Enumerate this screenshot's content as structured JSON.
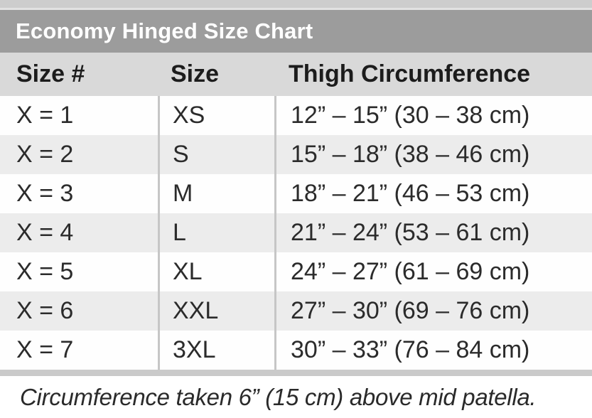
{
  "title": "Economy Hinged Size Chart",
  "table": {
    "columns": {
      "size_num": "Size #",
      "size": "Size",
      "thigh": "Thigh Circumference"
    },
    "rows": [
      {
        "size_num": "X = 1",
        "size": "XS",
        "thigh": "12” – 15” (30 – 38 cm)"
      },
      {
        "size_num": "X = 2",
        "size": "S",
        "thigh": "15” – 18” (38 – 46 cm)"
      },
      {
        "size_num": "X = 3",
        "size": "M",
        "thigh": "18” – 21” (46 – 53 cm)"
      },
      {
        "size_num": "X = 4",
        "size": "L",
        "thigh": "21” – 24” (53 – 61 cm)"
      },
      {
        "size_num": "X = 5",
        "size": "XL",
        "thigh": "24” – 27” (61 – 69 cm)"
      },
      {
        "size_num": "X = 6",
        "size": "XXL",
        "thigh": "27” – 30” (69 – 76 cm)"
      },
      {
        "size_num": "X = 7",
        "size": "3XL",
        "thigh": "30” – 33” (76 – 84 cm)"
      }
    ]
  },
  "footnote": "Circumference taken 6” (15 cm) above mid patella.",
  "colors": {
    "page_background": "#cdcdcd",
    "title_bar": "#9c9c9c",
    "title_text": "#ffffff",
    "header_row": "#d9d9d9",
    "row_alternate": "#ececec",
    "separator": "#c6c6c6",
    "body_text": "#2b2b2b"
  }
}
